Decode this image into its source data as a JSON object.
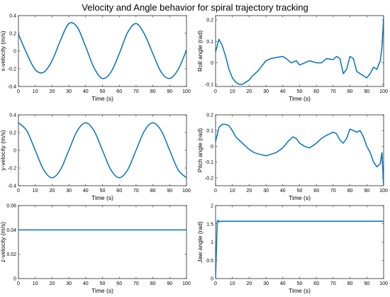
{
  "figure": {
    "title": "Velocity and Angle behavior for spiral trajectory tracking"
  },
  "colors": {
    "line": "#0072BD",
    "axes": "#262626",
    "background": "#ffffff"
  },
  "chart_data": [
    {
      "type": "line",
      "xlabel": "Time (s)",
      "ylabel": "x-velocity (m/s)",
      "xlim": [
        0,
        100
      ],
      "ylim": [
        -0.4,
        0.4
      ],
      "xticks": [
        0,
        10,
        20,
        30,
        40,
        50,
        60,
        70,
        80,
        90,
        100
      ],
      "yticks": [
        -0.4,
        -0.2,
        0,
        0.2,
        0.4
      ],
      "xtick_labels": [
        "0",
        "10",
        "20",
        "30",
        "40",
        "50",
        "60",
        "70",
        "80",
        "90",
        "100"
      ],
      "ytick_labels": [
        "-0.4",
        "-0.2",
        "0",
        "0.2",
        "0.4"
      ],
      "grid": false,
      "series": [
        {
          "x": [
            0,
            5,
            10,
            15,
            20,
            25,
            30,
            35,
            40,
            45,
            50,
            55,
            60,
            65,
            70,
            75,
            80,
            85,
            90,
            95,
            100
          ],
          "y": [
            0.19,
            -0.03,
            -0.21,
            -0.24,
            -0.11,
            0.12,
            0.31,
            0.27,
            0.05,
            -0.19,
            -0.31,
            -0.24,
            -0.03,
            0.21,
            0.31,
            0.19,
            -0.03,
            -0.24,
            -0.31,
            -0.21,
            0.01
          ]
        }
      ]
    },
    {
      "type": "line",
      "xlabel": "Time (s)",
      "ylabel": "Roll angle (rad)",
      "xlim": [
        0,
        100
      ],
      "ylim": [
        -0.11,
        0.22
      ],
      "xticks": [
        0,
        10,
        20,
        30,
        40,
        50,
        60,
        70,
        80,
        90,
        100
      ],
      "yticks": [
        -0.1,
        0,
        0.1,
        0.2
      ],
      "xtick_labels": [
        "0",
        "10",
        "20",
        "30",
        "40",
        "50",
        "60",
        "70",
        "80",
        "90",
        "100"
      ],
      "ytick_labels": [
        "-0.1",
        "0",
        "0.1",
        "0.2"
      ],
      "grid": false,
      "series": [
        {
          "x": [
            0,
            2,
            4,
            6,
            8,
            10,
            12,
            14,
            16,
            18,
            20,
            22,
            25,
            28,
            30,
            33,
            36,
            40,
            42,
            45,
            48,
            50,
            53,
            56,
            60,
            63,
            66,
            70,
            72,
            74,
            76,
            78,
            80,
            82,
            84,
            86,
            88,
            90,
            92,
            94,
            96,
            98,
            99,
            100
          ],
          "y": [
            0.05,
            0.11,
            0.08,
            0.03,
            -0.03,
            -0.07,
            -0.09,
            -0.1,
            -0.1,
            -0.09,
            -0.08,
            -0.06,
            -0.04,
            -0.01,
            0.01,
            0.02,
            0.025,
            0.03,
            0.02,
            0.0,
            0.01,
            -0.01,
            0.0,
            0.01,
            0.0,
            0.0,
            0.02,
            0.015,
            0.03,
            0.02,
            -0.05,
            -0.03,
            0.03,
            0.02,
            -0.04,
            -0.05,
            -0.06,
            -0.07,
            -0.05,
            -0.02,
            -0.03,
            0.01,
            0.07,
            0.21
          ]
        }
      ]
    },
    {
      "type": "line",
      "xlabel": "Time (s)",
      "ylabel": "y-velocity (m/s)",
      "xlim": [
        0,
        100
      ],
      "ylim": [
        -0.4,
        0.4
      ],
      "xticks": [
        0,
        10,
        20,
        30,
        40,
        50,
        60,
        70,
        80,
        90,
        100
      ],
      "yticks": [
        -0.4,
        -0.2,
        0,
        0.2,
        0.4
      ],
      "xtick_labels": [
        "0",
        "10",
        "20",
        "30",
        "40",
        "50",
        "60",
        "70",
        "80",
        "90",
        "100"
      ],
      "ytick_labels": [
        "-0.4",
        "-0.2",
        "0",
        "0.2",
        "0.4"
      ],
      "grid": false,
      "series": [
        {
          "x": [
            0,
            5,
            10,
            15,
            20,
            25,
            30,
            35,
            40,
            45,
            50,
            55,
            60,
            65,
            70,
            75,
            80,
            85,
            90,
            95,
            100
          ],
          "y": [
            0.31,
            0.22,
            0.0,
            -0.22,
            -0.31,
            -0.22,
            0.0,
            0.22,
            0.31,
            0.22,
            0.0,
            -0.22,
            -0.31,
            -0.22,
            0.0,
            0.22,
            0.31,
            0.22,
            0.0,
            -0.22,
            -0.31
          ]
        }
      ]
    },
    {
      "type": "line",
      "xlabel": "Time (s)",
      "ylabel": "Pitch angle (rad)",
      "xlim": [
        0,
        100
      ],
      "ylim": [
        -0.25,
        0.2
      ],
      "xticks": [
        0,
        10,
        20,
        30,
        40,
        50,
        60,
        70,
        80,
        90,
        100
      ],
      "yticks": [
        -0.2,
        -0.1,
        0,
        0.1,
        0.2
      ],
      "xtick_labels": [
        "0",
        "10",
        "20",
        "30",
        "40",
        "50",
        "60",
        "70",
        "80",
        "90",
        "100"
      ],
      "ytick_labels": [
        "-0.2",
        "-0.1",
        "0",
        "0.1",
        "0.2"
      ],
      "grid": false,
      "series": [
        {
          "x": [
            0,
            2,
            4,
            6,
            8,
            10,
            12,
            15,
            18,
            20,
            23,
            26,
            30,
            33,
            36,
            40,
            43,
            46,
            48,
            50,
            53,
            56,
            60,
            63,
            66,
            70,
            72,
            74,
            76,
            78,
            80,
            82,
            84,
            86,
            88,
            90,
            92,
            94,
            96,
            98,
            99,
            100
          ],
          "y": [
            0.03,
            0.12,
            0.14,
            0.14,
            0.13,
            0.1,
            0.06,
            0.03,
            0.0,
            -0.02,
            -0.04,
            -0.05,
            -0.06,
            -0.05,
            -0.04,
            -0.01,
            0.03,
            0.06,
            0.05,
            0.02,
            0.0,
            -0.01,
            0.02,
            0.05,
            0.07,
            0.09,
            0.08,
            0.04,
            0.02,
            0.05,
            0.11,
            0.1,
            0.09,
            0.1,
            0.06,
            0.0,
            -0.04,
            -0.1,
            -0.13,
            -0.11,
            -0.04,
            -0.25
          ]
        }
      ]
    },
    {
      "type": "line",
      "xlabel": "Time (s)",
      "ylabel": "z-velocity (m/s)",
      "xlim": [
        0,
        100
      ],
      "ylim": [
        0,
        0.06
      ],
      "xticks": [
        0,
        10,
        20,
        30,
        40,
        50,
        60,
        70,
        80,
        90,
        100
      ],
      "yticks": [
        0,
        0.02,
        0.04,
        0.06
      ],
      "xtick_labels": [
        "0",
        "10",
        "20",
        "30",
        "40",
        "50",
        "60",
        "70",
        "80",
        "90",
        "100"
      ],
      "ytick_labels": [
        "0",
        "0.02",
        "0.04",
        "0.06"
      ],
      "grid": false,
      "series": [
        {
          "x": [
            0,
            100
          ],
          "y": [
            0.04,
            0.04
          ]
        }
      ]
    },
    {
      "type": "line",
      "xlabel": "Time (s)",
      "ylabel": "Jaw angle (rad)",
      "xlim": [
        0,
        100
      ],
      "ylim": [
        0,
        2
      ],
      "xticks": [
        0,
        10,
        20,
        30,
        40,
        50,
        60,
        70,
        80,
        90,
        100
      ],
      "yticks": [
        0,
        0.5,
        1,
        1.5,
        2
      ],
      "xtick_labels": [
        "0",
        "10",
        "20",
        "30",
        "40",
        "50",
        "60",
        "70",
        "80",
        "90",
        "100"
      ],
      "ytick_labels": [
        "0",
        "0.5",
        "1",
        "1.5",
        "2"
      ],
      "grid": false,
      "series": [
        {
          "x": [
            0,
            1,
            1.5,
            2,
            3,
            100
          ],
          "y": [
            0,
            1.57,
            1.6,
            1.55,
            1.57,
            1.57
          ]
        }
      ]
    }
  ]
}
